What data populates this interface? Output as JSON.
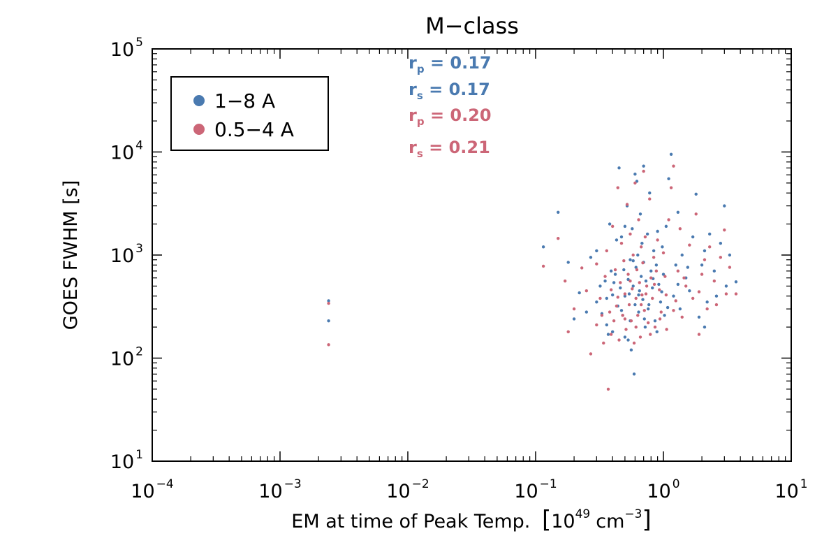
{
  "colors": {
    "blue": "#4a7ab0",
    "red": "#cc6677",
    "axis": "#000000"
  },
  "chart_data": {
    "type": "scatter",
    "title": "M−class",
    "xlabel": {
      "main": "EM at time of Peak Temp.",
      "unit_base": "10",
      "unit_exp": "49",
      "unit_rest": "cm",
      "unit_rest_exp": "−3"
    },
    "ylabel": "GOES FWHM [s]",
    "x_scale": "log",
    "y_scale": "log",
    "xlim": [
      0.0001,
      10
    ],
    "ylim": [
      10,
      100000
    ],
    "xticks": [
      {
        "value": 0.0001,
        "base": "10",
        "exp": "−4"
      },
      {
        "value": 0.001,
        "base": "10",
        "exp": "−3"
      },
      {
        "value": 0.01,
        "base": "10",
        "exp": "−2"
      },
      {
        "value": 0.1,
        "base": "10",
        "exp": "−1"
      },
      {
        "value": 1,
        "base": "10",
        "exp": "0"
      },
      {
        "value": 10,
        "base": "10",
        "exp": "1"
      }
    ],
    "yticks": [
      {
        "value": 10,
        "base": "10",
        "exp": "1"
      },
      {
        "value": 100,
        "base": "10",
        "exp": "2"
      },
      {
        "value": 1000,
        "base": "10",
        "exp": "3"
      },
      {
        "value": 10000,
        "base": "10",
        "exp": "4"
      },
      {
        "value": 100000,
        "base": "10",
        "exp": "5"
      }
    ],
    "legend": {
      "position": "top-left",
      "entries": [
        {
          "label": "1−8 A",
          "color": "#4a7ab0"
        },
        {
          "label": "0.5−4 A",
          "color": "#cc6677"
        }
      ]
    },
    "annotations": [
      {
        "sym": "r",
        "sub": "p",
        "text": " = 0.17",
        "color": "#4a7ab0"
      },
      {
        "sym": "r",
        "sub": "s",
        "text": " = 0.17",
        "color": "#4a7ab0"
      },
      {
        "sym": "r",
        "sub": "p",
        "text": " = 0.20",
        "color": "#cc6677"
      },
      {
        "sym": "r",
        "sub": "s",
        "text": " = 0.21",
        "color": "#cc6677"
      }
    ],
    "series": [
      {
        "color": "#4a7ab0",
        "points": [
          [
            0.0024,
            360
          ],
          [
            0.0024,
            230
          ],
          [
            0.115,
            1200
          ],
          [
            0.15,
            2600
          ],
          [
            0.18,
            850
          ],
          [
            0.2,
            240
          ],
          [
            0.22,
            430
          ],
          [
            0.25,
            280
          ],
          [
            0.27,
            950
          ],
          [
            0.3,
            1100
          ],
          [
            0.3,
            350
          ],
          [
            0.32,
            500
          ],
          [
            0.33,
            270
          ],
          [
            0.35,
            560
          ],
          [
            0.36,
            380
          ],
          [
            0.37,
            170
          ],
          [
            0.38,
            2000
          ],
          [
            0.39,
            700
          ],
          [
            0.4,
            410
          ],
          [
            0.4,
            180
          ],
          [
            0.42,
            650
          ],
          [
            0.43,
            1400
          ],
          [
            0.44,
            320
          ],
          [
            0.45,
            7000
          ],
          [
            0.46,
            480
          ],
          [
            0.47,
            1500
          ],
          [
            0.48,
            260
          ],
          [
            0.49,
            720
          ],
          [
            0.5,
            1900
          ],
          [
            0.5,
            400
          ],
          [
            0.5,
            160
          ],
          [
            0.52,
            3000
          ],
          [
            0.53,
            580
          ],
          [
            0.54,
            420
          ],
          [
            0.55,
            230
          ],
          [
            0.55,
            900
          ],
          [
            0.56,
            120
          ],
          [
            0.57,
            1800
          ],
          [
            0.58,
            500
          ],
          [
            0.59,
            70
          ],
          [
            0.6,
            6100
          ],
          [
            0.6,
            330
          ],
          [
            0.61,
            760
          ],
          [
            0.62,
            5200
          ],
          [
            0.63,
            1000
          ],
          [
            0.64,
            280
          ],
          [
            0.65,
            450
          ],
          [
            0.66,
            2500
          ],
          [
            0.67,
            620
          ],
          [
            0.68,
            1300
          ],
          [
            0.69,
            370
          ],
          [
            0.7,
            7300
          ],
          [
            0.7,
            850
          ],
          [
            0.72,
            200
          ],
          [
            0.73,
            560
          ],
          [
            0.75,
            1600
          ],
          [
            0.76,
            300
          ],
          [
            0.78,
            4000
          ],
          [
            0.8,
            700
          ],
          [
            0.82,
            480
          ],
          [
            0.84,
            1100
          ],
          [
            0.86,
            230
          ],
          [
            0.88,
            800
          ],
          [
            0.9,
            1700
          ],
          [
            0.92,
            520
          ],
          [
            0.95,
            350
          ],
          [
            0.98,
            1200
          ],
          [
            1.0,
            650
          ],
          [
            1.02,
            260
          ],
          [
            1.05,
            1900
          ],
          [
            1.1,
            5500
          ],
          [
            1.15,
            9500
          ],
          [
            1.2,
            400
          ],
          [
            1.25,
            800
          ],
          [
            1.3,
            2600
          ],
          [
            1.35,
            300
          ],
          [
            1.4,
            1000
          ],
          [
            1.5,
            600
          ],
          [
            1.6,
            450
          ],
          [
            1.7,
            1500
          ],
          [
            1.8,
            3900
          ],
          [
            1.9,
            250
          ],
          [
            2.0,
            800
          ],
          [
            2.1,
            1100
          ],
          [
            2.2,
            350
          ],
          [
            2.3,
            1600
          ],
          [
            2.5,
            700
          ],
          [
            2.6,
            400
          ],
          [
            2.8,
            1300
          ],
          [
            3.0,
            3000
          ],
          [
            3.1,
            500
          ],
          [
            3.3,
            1000
          ],
          [
            3.7,
            550
          ],
          [
            0.36,
            210
          ],
          [
            0.41,
            540
          ],
          [
            0.47,
            290
          ],
          [
            0.53,
            150
          ],
          [
            0.58,
            880
          ],
          [
            0.64,
            410
          ],
          [
            0.71,
            240
          ],
          [
            0.77,
            330
          ],
          [
            0.83,
            590
          ],
          [
            0.89,
            180
          ],
          [
            0.97,
            440
          ],
          [
            1.08,
            310
          ],
          [
            1.3,
            520
          ],
          [
            1.55,
            760
          ],
          [
            2.1,
            200
          ]
        ]
      },
      {
        "color": "#cc6677",
        "points": [
          [
            0.0024,
            340
          ],
          [
            0.0024,
            135
          ],
          [
            0.115,
            780
          ],
          [
            0.15,
            1450
          ],
          [
            0.17,
            560
          ],
          [
            0.18,
            180
          ],
          [
            0.2,
            300
          ],
          [
            0.23,
            750
          ],
          [
            0.25,
            450
          ],
          [
            0.27,
            110
          ],
          [
            0.3,
            820
          ],
          [
            0.3,
            210
          ],
          [
            0.32,
            380
          ],
          [
            0.34,
            140
          ],
          [
            0.35,
            620
          ],
          [
            0.36,
            1100
          ],
          [
            0.37,
            50
          ],
          [
            0.38,
            280
          ],
          [
            0.39,
            460
          ],
          [
            0.4,
            1900
          ],
          [
            0.41,
            230
          ],
          [
            0.42,
            720
          ],
          [
            0.43,
            320
          ],
          [
            0.44,
            4500
          ],
          [
            0.45,
            150
          ],
          [
            0.46,
            540
          ],
          [
            0.47,
            1300
          ],
          [
            0.48,
            260
          ],
          [
            0.49,
            880
          ],
          [
            0.5,
            420
          ],
          [
            0.51,
            190
          ],
          [
            0.52,
            3100
          ],
          [
            0.53,
            650
          ],
          [
            0.54,
            330
          ],
          [
            0.55,
            1600
          ],
          [
            0.56,
            230
          ],
          [
            0.57,
            470
          ],
          [
            0.58,
            1000
          ],
          [
            0.59,
            140
          ],
          [
            0.6,
            5000
          ],
          [
            0.61,
            380
          ],
          [
            0.62,
            720
          ],
          [
            0.63,
            260
          ],
          [
            0.64,
            2200
          ],
          [
            0.65,
            540
          ],
          [
            0.66,
            160
          ],
          [
            0.67,
            1200
          ],
          [
            0.68,
            410
          ],
          [
            0.69,
            840
          ],
          [
            0.7,
            6500
          ],
          [
            0.71,
            290
          ],
          [
            0.72,
            1500
          ],
          [
            0.74,
            500
          ],
          [
            0.76,
            220
          ],
          [
            0.78,
            3500
          ],
          [
            0.8,
            600
          ],
          [
            0.82,
            380
          ],
          [
            0.84,
            950
          ],
          [
            0.86,
            200
          ],
          [
            0.88,
            700
          ],
          [
            0.9,
            1400
          ],
          [
            0.93,
            460
          ],
          [
            0.96,
            280
          ],
          [
            1.0,
            1050
          ],
          [
            1.03,
            620
          ],
          [
            1.06,
            190
          ],
          [
            1.1,
            2200
          ],
          [
            1.15,
            4500
          ],
          [
            1.2,
            7300
          ],
          [
            1.25,
            360
          ],
          [
            1.3,
            700
          ],
          [
            1.35,
            1800
          ],
          [
            1.4,
            250
          ],
          [
            1.5,
            500
          ],
          [
            1.6,
            1250
          ],
          [
            1.7,
            380
          ],
          [
            1.8,
            2500
          ],
          [
            1.9,
            170
          ],
          [
            2.0,
            650
          ],
          [
            2.1,
            900
          ],
          [
            2.2,
            300
          ],
          [
            2.3,
            1200
          ],
          [
            2.5,
            560
          ],
          [
            2.6,
            330
          ],
          [
            2.8,
            950
          ],
          [
            3.0,
            1750
          ],
          [
            3.1,
            420
          ],
          [
            3.3,
            760
          ],
          [
            3.7,
            420
          ],
          [
            0.33,
            260
          ],
          [
            0.39,
            170
          ],
          [
            0.44,
            390
          ],
          [
            0.5,
            240
          ],
          [
            0.55,
            560
          ],
          [
            0.61,
            200
          ],
          [
            0.67,
            330
          ],
          [
            0.73,
            420
          ],
          [
            0.79,
            170
          ],
          [
            0.85,
            520
          ],
          [
            0.94,
            240
          ],
          [
            1.05,
            410
          ],
          [
            1.2,
            290
          ],
          [
            1.45,
            600
          ],
          [
            1.9,
            440
          ]
        ]
      }
    ]
  }
}
